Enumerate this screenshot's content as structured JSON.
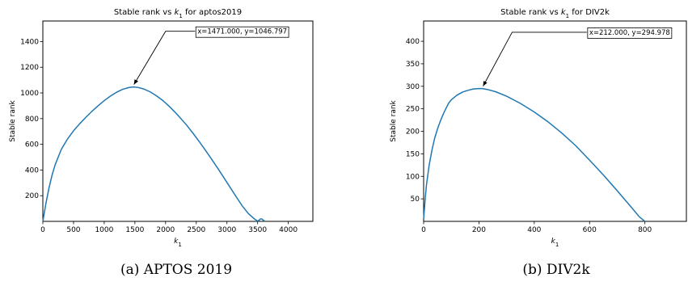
{
  "chart_data": [
    {
      "type": "line",
      "title_prefix": "Stable rank vs ",
      "title_var": "k",
      "title_sub": "1",
      "title_suffix": " for aptos2019",
      "xlabel_var": "k",
      "xlabel_sub": "1",
      "ylabel": "Stable rank",
      "xlim": [
        0,
        4400
      ],
      "ylim": [
        0,
        1560
      ],
      "xticks": [
        0,
        500,
        1000,
        1500,
        2000,
        2500,
        3000,
        3500,
        4000
      ],
      "yticks": [
        200,
        400,
        600,
        800,
        1000,
        1200,
        1400
      ],
      "grid": false,
      "series": [
        {
          "color": "#1f77b4",
          "x": [
            0,
            50,
            100,
            150,
            200,
            300,
            400,
            500,
            600,
            700,
            800,
            900,
            1000,
            1100,
            1200,
            1300,
            1400,
            1471,
            1550,
            1650,
            1750,
            1850,
            1950,
            2050,
            2150,
            2250,
            2350,
            2450,
            2550,
            2650,
            2750,
            2850,
            2950,
            3050,
            3150,
            3250,
            3350,
            3450,
            3500,
            3530,
            3550,
            3570,
            3590,
            3610,
            3620
          ],
          "y": [
            0,
            140,
            260,
            360,
            440,
            560,
            640,
            705,
            760,
            810,
            857,
            900,
            940,
            975,
            1005,
            1028,
            1042,
            1046.797,
            1043,
            1030,
            1008,
            978,
            943,
            900,
            852,
            800,
            745,
            684,
            620,
            553,
            484,
            413,
            340,
            266,
            192,
            120,
            60,
            18,
            2,
            12,
            20,
            18,
            10,
            4,
            0
          ]
        }
      ],
      "annotation": {
        "text": "x=1471.000, y=1046.797",
        "point": [
          1471,
          1046.797
        ],
        "text_anchor_data": [
          2480,
          1480
        ],
        "elbow_data": [
          2000,
          1480
        ]
      },
      "caption": "(a) APTOS 2019"
    },
    {
      "type": "line",
      "title_prefix": "Stable rank vs ",
      "title_var": "k",
      "title_sub": "1",
      "title_suffix": " for DIV2k",
      "xlabel_var": "k",
      "xlabel_sub": "1",
      "ylabel": "Stable rank",
      "xlim": [
        0,
        950
      ],
      "ylim": [
        0,
        445
      ],
      "xticks": [
        0,
        200,
        400,
        600,
        800
      ],
      "yticks": [
        50,
        100,
        150,
        200,
        250,
        300,
        350,
        400
      ],
      "grid": false,
      "series": [
        {
          "color": "#1f77b4",
          "x": [
            0,
            5,
            10,
            20,
            30,
            40,
            50,
            60,
            70,
            80,
            90,
            100,
            120,
            140,
            160,
            180,
            200,
            212,
            230,
            260,
            300,
            350,
            400,
            450,
            500,
            550,
            600,
            650,
            700,
            750,
            780,
            800
          ],
          "y": [
            5,
            45,
            80,
            125,
            158,
            185,
            205,
            222,
            237,
            250,
            262,
            270,
            280,
            287,
            291,
            294,
            295,
            294.978,
            293,
            288,
            278,
            262,
            243,
            221,
            196,
            168,
            136,
            103,
            68,
            32,
            10,
            0
          ]
        }
      ],
      "annotation": {
        "text": "x=212.000, y=294.978",
        "point": [
          212,
          294.978
        ],
        "text_anchor_data": [
          590,
          420
        ],
        "elbow_data": [
          320,
          420
        ]
      },
      "caption": "(b) DIV2k"
    }
  ]
}
